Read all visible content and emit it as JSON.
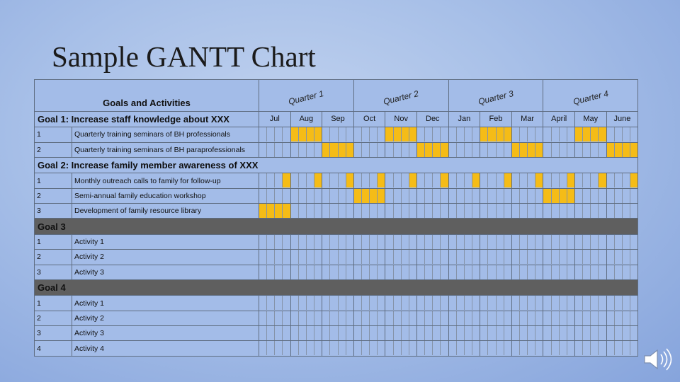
{
  "slide": {
    "title": "Sample GANTT Chart"
  },
  "header": {
    "title": "Goals and Activities",
    "quarters": [
      "Quarter 1",
      "Quarter 2",
      "Quarter 3",
      "Quarter 4"
    ]
  },
  "months": [
    "Jul",
    "Aug",
    "Sep",
    "Oct",
    "Nov",
    "Dec",
    "Jan",
    "Feb",
    "Mar",
    "April",
    "May",
    "June"
  ],
  "colors": {
    "bar": "#f5bc17",
    "goal_band": "#5f5f5f",
    "grid_bg": "#a3bce8"
  },
  "chart_data": {
    "type": "table",
    "goals": [
      {
        "title": "Goal 1: Increase staff knowledge about XXX",
        "activities": [
          {
            "num": "1",
            "label": "Quarterly training seminars of BH professionals",
            "slots": [
              "0000",
              "1111",
              "0000",
              "0000",
              "1111",
              "0000",
              "0000",
              "1111",
              "0000",
              "0000",
              "1111",
              "0000"
            ]
          },
          {
            "num": "2",
            "label": "Quarterly training seminars of BH paraprofessionals",
            "slots": [
              "0000",
              "0000",
              "1111",
              "0000",
              "0000",
              "1111",
              "0000",
              "0000",
              "1111",
              "0000",
              "0000",
              "1111"
            ]
          }
        ]
      },
      {
        "title": "Goal 2: Increase family member awareness of XXX",
        "activities": [
          {
            "num": "1",
            "label": "Monthly outreach calls to family for follow-up",
            "slots": [
              "0001",
              "0001",
              "0001",
              "0001",
              "0001",
              "0001",
              "0001",
              "0001",
              "0001",
              "0001",
              "0001",
              "0001"
            ]
          },
          {
            "num": "2",
            "label": "Semi-annual family education workshop",
            "slots": [
              "0000",
              "0000",
              "0000",
              "1111",
              "0000",
              "0000",
              "0000",
              "0000",
              "0000",
              "1111",
              "0000",
              "0000"
            ]
          },
          {
            "num": "3",
            "label": "Development of family resource library",
            "slots": [
              "1111",
              "0000",
              "0000",
              "0000",
              "0000",
              "0000",
              "0000",
              "0000",
              "0000",
              "0000",
              "0000",
              "0000"
            ]
          }
        ]
      },
      {
        "title": "Goal 3",
        "activities": [
          {
            "num": "1",
            "label": "Activity 1",
            "slots": []
          },
          {
            "num": "2",
            "label": "Activity 2",
            "slots": []
          },
          {
            "num": "3",
            "label": "Activity 3",
            "slots": []
          }
        ]
      },
      {
        "title": "Goal 4",
        "activities": [
          {
            "num": "1",
            "label": "Activity 1",
            "slots": []
          },
          {
            "num": "2",
            "label": "Activity 2",
            "slots": []
          },
          {
            "num": "3",
            "label": "Activity 3",
            "slots": []
          },
          {
            "num": "4",
            "label": "Activity 4",
            "slots": []
          }
        ]
      }
    ]
  }
}
